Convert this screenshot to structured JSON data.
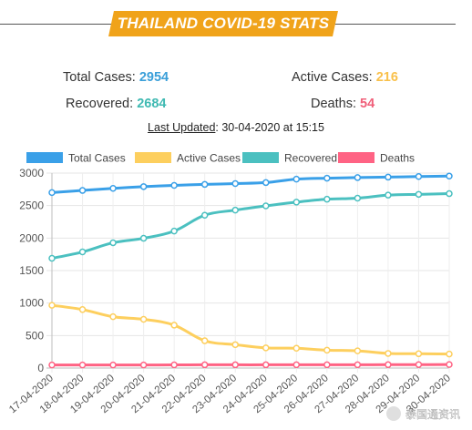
{
  "banner": {
    "title": "THAILAND COVID-19 STATS"
  },
  "stats": {
    "total_label": "Total Cases:",
    "total_value": "2954",
    "active_label": "Active Cases:",
    "active_value": "216",
    "recovered_label": "Recovered:",
    "recovered_value": "2684",
    "deaths_label": "Deaths:",
    "deaths_value": "54",
    "updated_label": "Last Updated",
    "updated_value": ": 30-04-2020 at 15:15"
  },
  "colors": {
    "banner": "#f0a31a",
    "total": "#3aa0e8",
    "active": "#fdcf5e",
    "recovered": "#4bc0c0",
    "deaths": "#ff6384",
    "total_text": "#3a9fd9",
    "active_text": "#f9c04a",
    "recovered_text": "#3fb9b2",
    "deaths_text": "#f0607a"
  },
  "watermark": "泰国通资讯",
  "chart_data": {
    "type": "line",
    "categories": [
      "17-04-2020",
      "18-04-2020",
      "19-04-2020",
      "20-04-2020",
      "21-04-2020",
      "22-04-2020",
      "23-04-2020",
      "24-04-2020",
      "25-04-2020",
      "26-04-2020",
      "27-04-2020",
      "28-04-2020",
      "29-04-2020",
      "30-04-2020"
    ],
    "ylim": [
      0,
      3000
    ],
    "yticks": [
      0,
      500,
      1000,
      1500,
      2000,
      2500,
      3000
    ],
    "grid": true,
    "legend_position": "top",
    "series": [
      {
        "name": "Total Cases",
        "color": "#3aa0e8",
        "values": [
          2700,
          2733,
          2765,
          2792,
          2811,
          2826,
          2839,
          2854,
          2907,
          2922,
          2931,
          2938,
          2947,
          2954
        ]
      },
      {
        "name": "Active Cases",
        "color": "#fdcf5e",
        "values": [
          966,
          900,
          790,
          750,
          660,
          420,
          360,
          310,
          305,
          275,
          265,
          225,
          220,
          216
        ]
      },
      {
        "name": "Recovered",
        "color": "#4bc0c0",
        "values": [
          1689,
          1787,
          1928,
          1997,
          2108,
          2352,
          2430,
          2495,
          2553,
          2598,
          2614,
          2661,
          2673,
          2684
        ]
      },
      {
        "name": "Deaths",
        "color": "#ff6384",
        "values": [
          47,
          47,
          47,
          47,
          49,
          50,
          50,
          50,
          51,
          51,
          51,
          52,
          53,
          54
        ]
      }
    ]
  }
}
